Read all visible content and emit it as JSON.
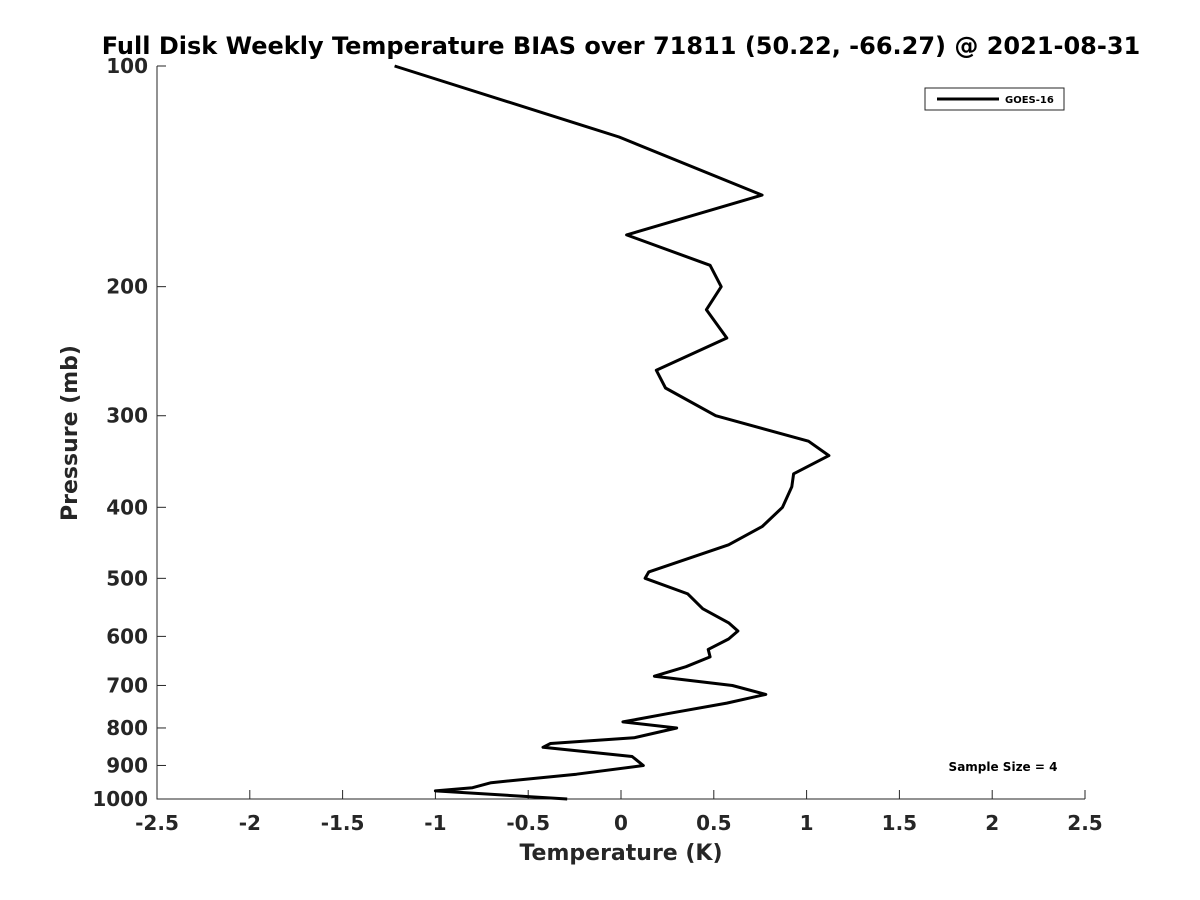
{
  "chart_data": {
    "type": "line",
    "title": "Full Disk Weekly Temperature BIAS over 71811 (50.22, -66.27) @ 2021-08-31",
    "xlabel": "Temperature (K)",
    "ylabel": "Pressure (mb)",
    "xlim": [
      -2.5,
      2.5
    ],
    "ylim": [
      100,
      1000
    ],
    "y_scale": "log",
    "y_reversed": true,
    "grid": false,
    "x_ticks": [
      -2.5,
      -2,
      -1.5,
      -1,
      -0.5,
      0,
      0.5,
      1,
      1.5,
      2,
      2.5
    ],
    "x_tick_labels": [
      "-2.5",
      "-2",
      "-1.5",
      "-1",
      "-0.5",
      "0",
      "0.5",
      "1",
      "1.5",
      "2",
      "2.5"
    ],
    "y_ticks": [
      100,
      200,
      300,
      400,
      500,
      600,
      700,
      800,
      900,
      1000
    ],
    "y_tick_labels": [
      "100",
      "200",
      "300",
      "400",
      "500",
      "600",
      "700",
      "800",
      "900",
      "1000"
    ],
    "legend_position": "top-right",
    "series": [
      {
        "name": "GOES-16",
        "color": "#000000",
        "points": [
          {
            "x": -1.22,
            "y": 100
          },
          {
            "x": -0.01,
            "y": 125
          },
          {
            "x": 0.76,
            "y": 150
          },
          {
            "x": 0.03,
            "y": 170
          },
          {
            "x": 0.48,
            "y": 187
          },
          {
            "x": 0.54,
            "y": 200
          },
          {
            "x": 0.46,
            "y": 215
          },
          {
            "x": 0.57,
            "y": 235
          },
          {
            "x": 0.19,
            "y": 260
          },
          {
            "x": 0.24,
            "y": 275
          },
          {
            "x": 0.51,
            "y": 300
          },
          {
            "x": 1.01,
            "y": 325
          },
          {
            "x": 1.12,
            "y": 340
          },
          {
            "x": 0.93,
            "y": 360
          },
          {
            "x": 0.92,
            "y": 375
          },
          {
            "x": 0.87,
            "y": 400
          },
          {
            "x": 0.76,
            "y": 425
          },
          {
            "x": 0.58,
            "y": 450
          },
          {
            "x": 0.15,
            "y": 490
          },
          {
            "x": 0.13,
            "y": 500
          },
          {
            "x": 0.36,
            "y": 525
          },
          {
            "x": 0.44,
            "y": 550
          },
          {
            "x": 0.58,
            "y": 575
          },
          {
            "x": 0.63,
            "y": 590
          },
          {
            "x": 0.58,
            "y": 605
          },
          {
            "x": 0.47,
            "y": 625
          },
          {
            "x": 0.48,
            "y": 640
          },
          {
            "x": 0.35,
            "y": 660
          },
          {
            "x": 0.18,
            "y": 680
          },
          {
            "x": 0.6,
            "y": 700
          },
          {
            "x": 0.78,
            "y": 720
          },
          {
            "x": 0.57,
            "y": 740
          },
          {
            "x": 0.25,
            "y": 765
          },
          {
            "x": 0.01,
            "y": 785
          },
          {
            "x": 0.3,
            "y": 800
          },
          {
            "x": 0.07,
            "y": 825
          },
          {
            "x": -0.38,
            "y": 840
          },
          {
            "x": -0.42,
            "y": 850
          },
          {
            "x": 0.06,
            "y": 875
          },
          {
            "x": 0.12,
            "y": 900
          },
          {
            "x": -0.24,
            "y": 925
          },
          {
            "x": -0.7,
            "y": 950
          },
          {
            "x": -0.8,
            "y": 965
          },
          {
            "x": -1.0,
            "y": 975
          },
          {
            "x": -0.29,
            "y": 1000
          }
        ]
      }
    ],
    "annotations": [
      "Sample Size = 4"
    ]
  }
}
